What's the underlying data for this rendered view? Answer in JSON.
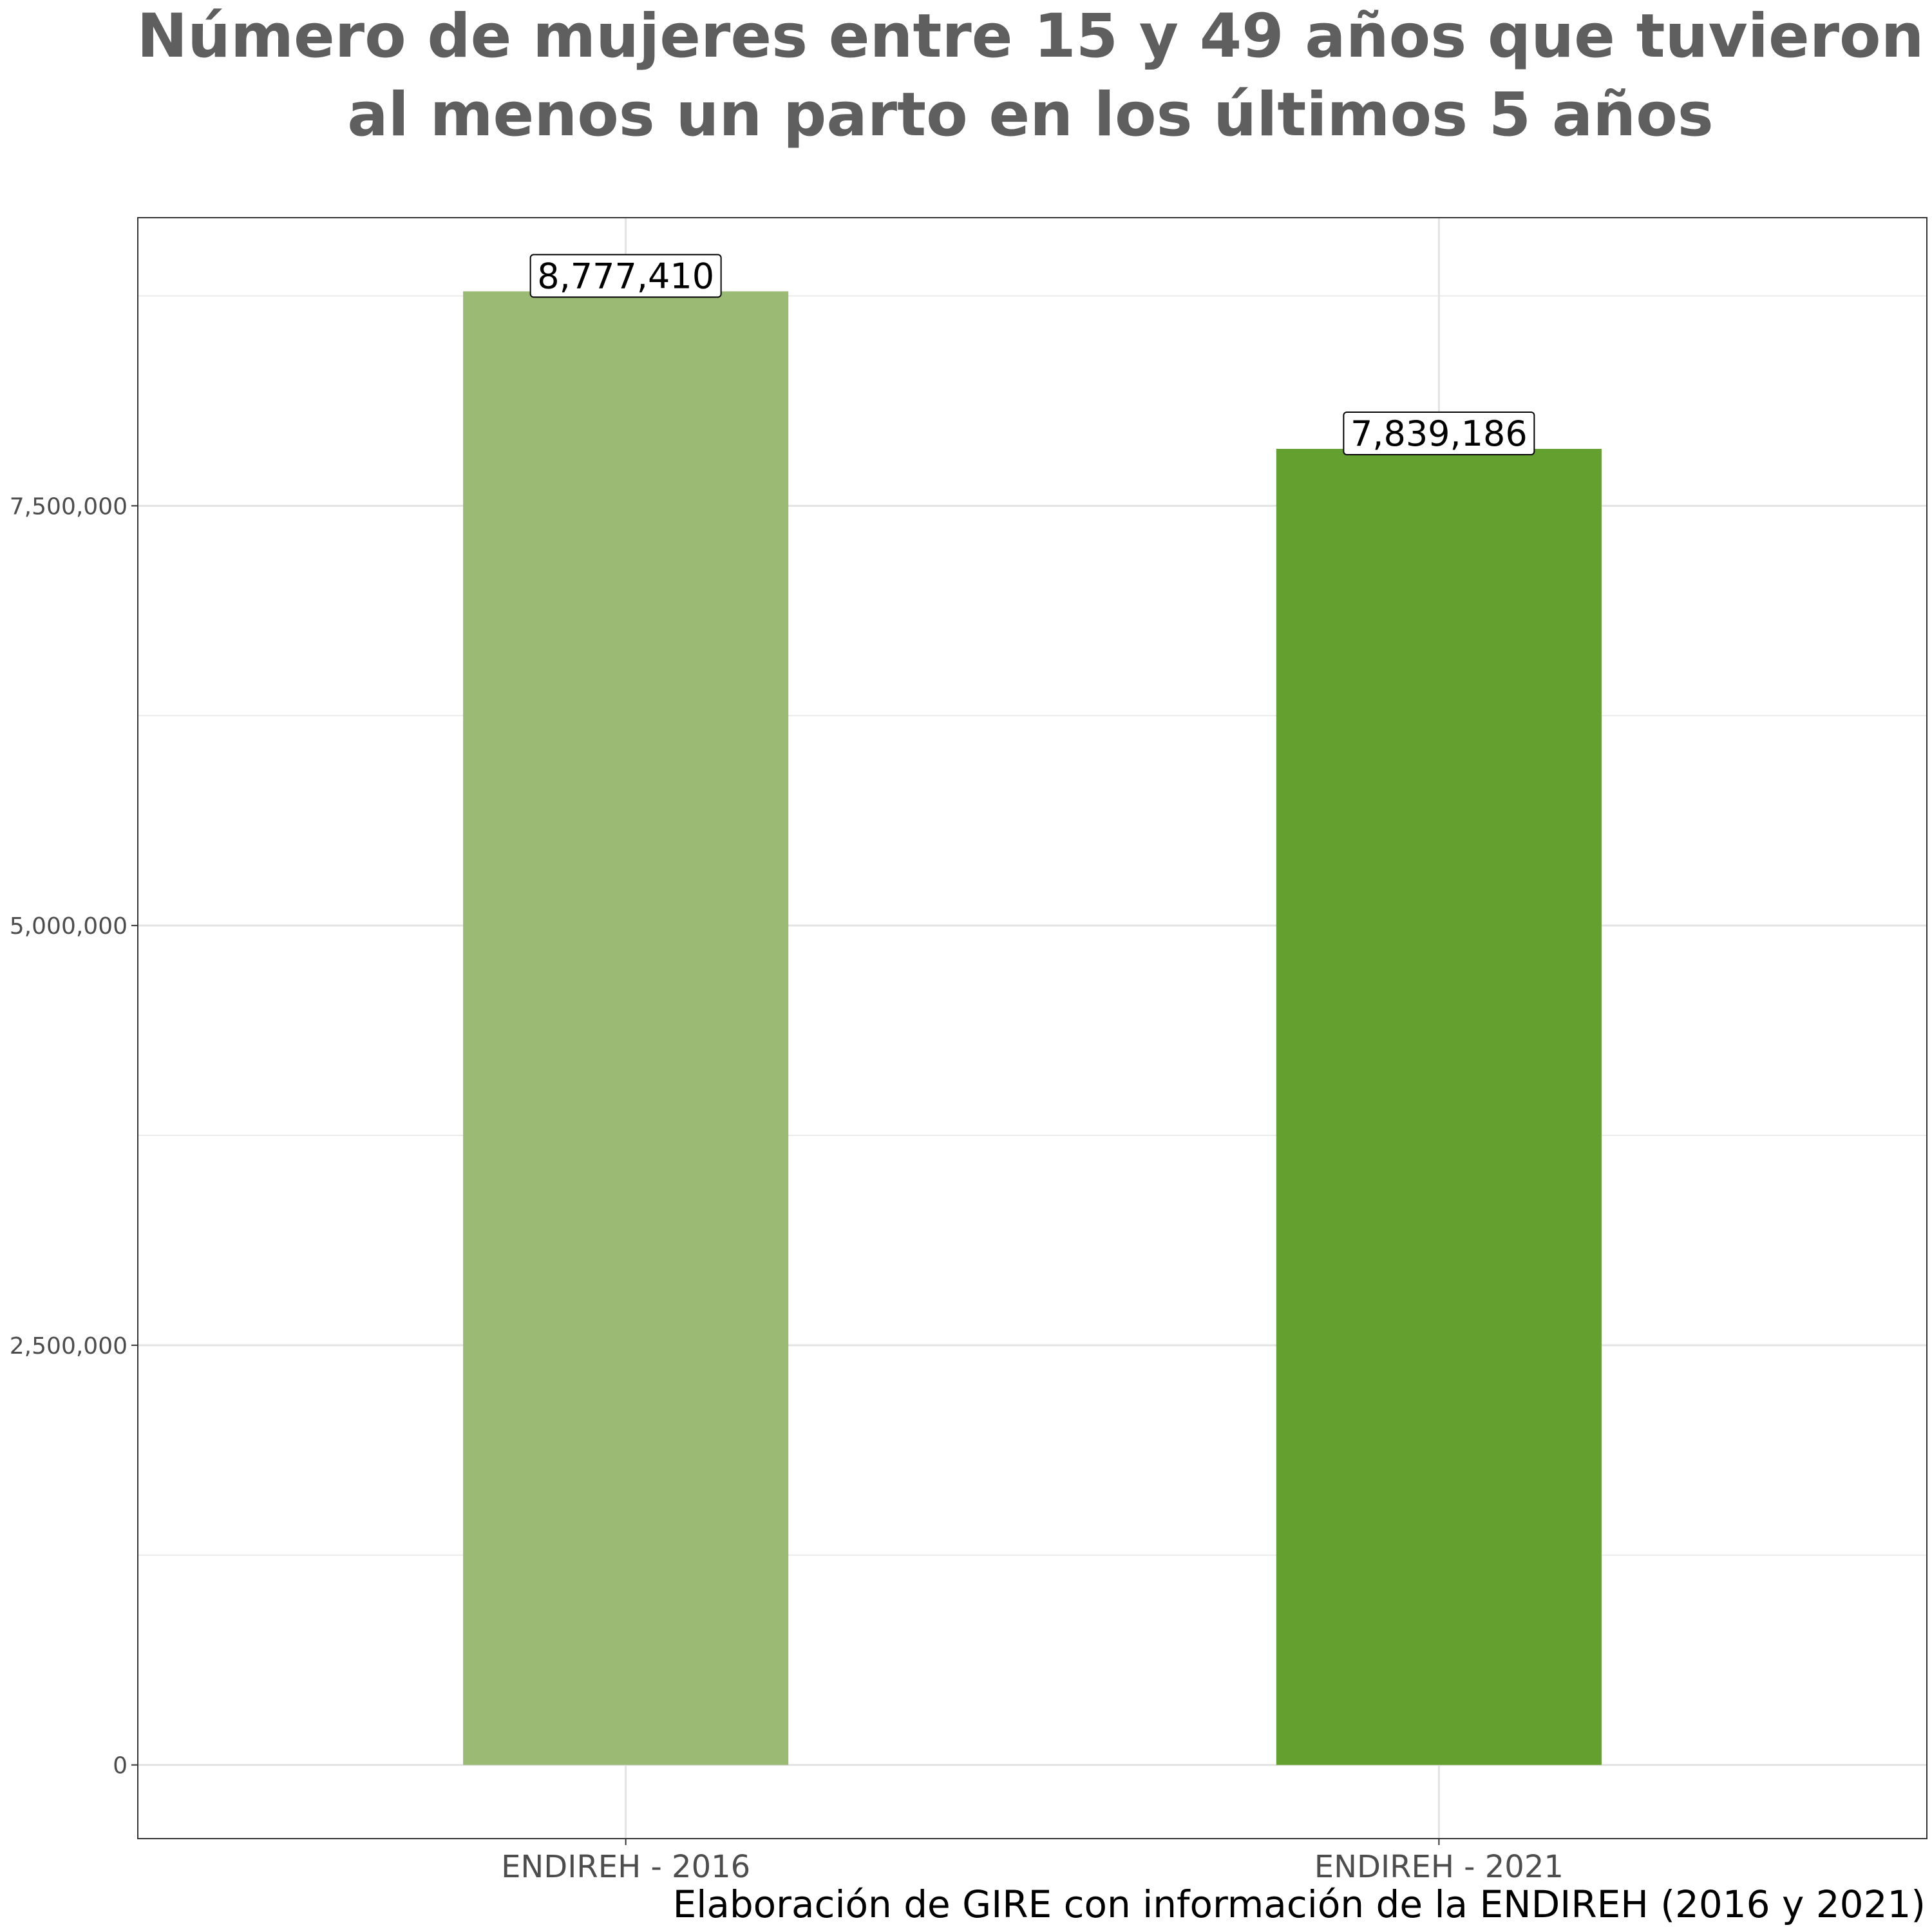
{
  "chart_data": {
    "type": "bar",
    "title_lines": [
      "Número de mujeres entre 15 y 49 años que tuvieron",
      "al menos un parto en los últimos 5 años"
    ],
    "caption": "Elaboración de GIRE con información de la ENDIREH (2016 y 2021)",
    "categories": [
      "ENDIREH - 2016",
      "ENDIREH - 2021"
    ],
    "values": [
      8777410,
      7839186
    ],
    "data_labels": [
      "8,777,410",
      "7,839,186"
    ],
    "colors": [
      "#9bba74",
      "#63a030"
    ],
    "y_ticks": [
      0,
      2500000,
      5000000,
      7500000
    ],
    "y_tick_labels": [
      "0",
      "2,500,000",
      "5,000,000",
      "7,500,000"
    ],
    "y_minor_gridlines": [
      1250000,
      3750000,
      6250000,
      8750000
    ],
    "ylim": [
      -438870,
      9216280
    ],
    "grid": true,
    "legend": "none"
  }
}
